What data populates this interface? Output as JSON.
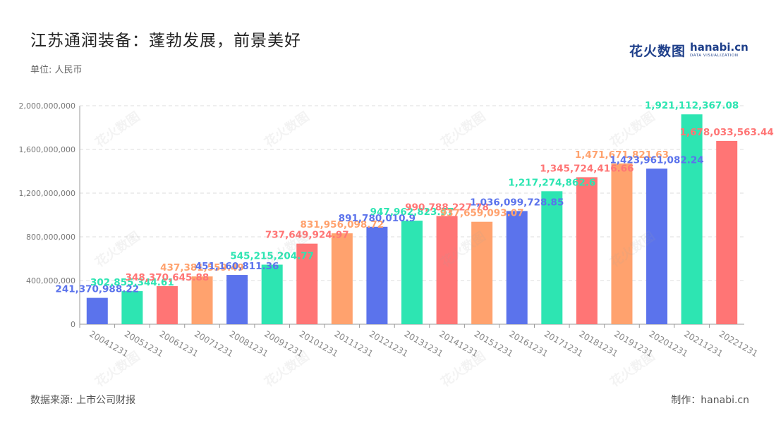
{
  "title": "江苏通润装备：蓬勃发展，前景美好",
  "unit_label": "单位: 人民币",
  "logo": {
    "cn": "花火数图",
    "en": "hanabi.cn",
    "sub": "DATA VISUALIZATION"
  },
  "source": "数据来源: 上市公司财报",
  "maker": "制作：hanabi.cn",
  "watermark": "花火数图",
  "colors": [
    "#5b73ec",
    "#2de5b2",
    "#ff7575",
    "#ffa26e"
  ],
  "chart_data": {
    "type": "bar",
    "categories": [
      "20041231",
      "20051231",
      "20061231",
      "20071231",
      "20081231",
      "20091231",
      "20101231",
      "20111231",
      "20121231",
      "20131231",
      "20141231",
      "20151231",
      "20161231",
      "20171231",
      "20181231",
      "20191231",
      "20201231",
      "20211231",
      "20221231"
    ],
    "values": [
      241370988.22,
      302855344.61,
      348370645.88,
      437381559.49,
      451160811.36,
      545215204.77,
      737649924.97,
      831956098.72,
      891780010.9,
      947962823.57,
      990788227.78,
      937659093.07,
      1036099728.85,
      1217274862.6,
      1345724416.66,
      1471671821.63,
      1423961082.24,
      1921112367.08,
      1678033563.44
    ],
    "value_labels": [
      "241,370,988.22",
      "302,855,344.61",
      "348,370,645.88",
      "437,381,559.49",
      "451,160,811.36",
      "545,215,204.77",
      "737,649,924.97",
      "831,956,098.72",
      "891,780,010.9",
      "947,962,823.57",
      "990,788,227.78",
      "937,659,093.07",
      "1,036,099,728.85",
      "1,217,274,862.6",
      "1,345,724,416.66",
      "1,471,671,821.63",
      "1,423,961,082.24",
      "1,921,112,367.08",
      "1,678,033,563.44"
    ],
    "y_ticks": [
      0,
      400000000,
      800000000,
      1200000000,
      1600000000,
      2000000000
    ],
    "y_tick_labels": [
      "0",
      "400,000,000",
      "800,000,000",
      "1,200,000,000",
      "1,600,000,000",
      "2,000,000,000"
    ],
    "ylim": [
      0,
      2000000000
    ],
    "grid": true
  }
}
